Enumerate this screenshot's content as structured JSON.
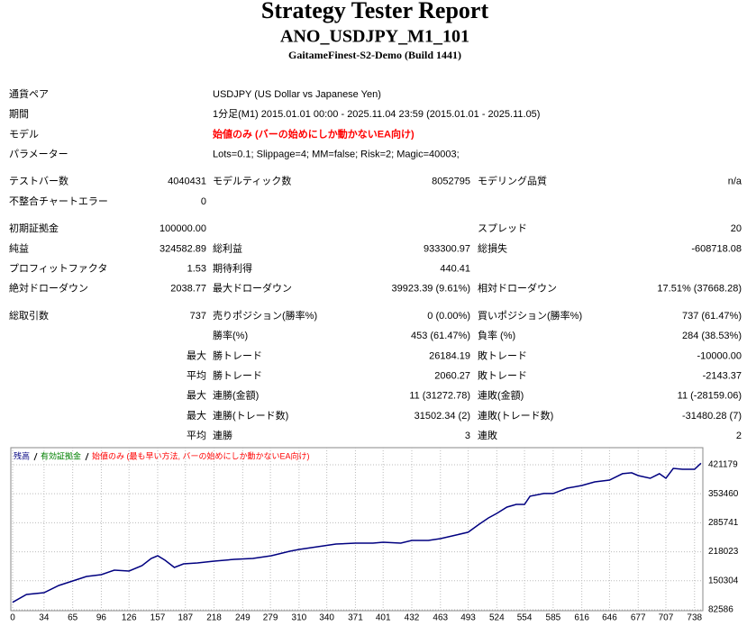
{
  "header": {
    "title": "Strategy Tester Report",
    "subtitle": "ANO_USDJPY_M1_101",
    "server": "GaitameFinest-S2-Demo (Build 1441)"
  },
  "sections": [
    [
      [
        "通貨ペア",
        "USDJPY (US Dollar vs Japanese Yen)"
      ],
      [
        "期間",
        "1分足(M1) 2015.01.01 00:00 - 2025.11.04 23:59 (2015.01.01 - 2025.11.05)"
      ],
      [
        "モデル",
        {
          "text": "始値のみ (バーの始めにしか動かないEA向け)",
          "color": "#ff0000",
          "bold": true
        }
      ],
      [
        "パラメーター",
        "Lots=0.1; Slippage=4; MM=false; Risk=2; Magic=40003;"
      ]
    ],
    [
      [
        "テストバー数",
        "4040431",
        "モデルティック数",
        "8052795",
        "モデリング品質",
        "n/a"
      ],
      [
        "不整合チャートエラー",
        "0",
        null,
        null,
        null,
        null
      ]
    ],
    [
      [
        "初期証拠金",
        "100000.00",
        null,
        null,
        "スプレッド",
        "20"
      ],
      [
        "純益",
        "324582.89",
        "総利益",
        "933300.97",
        "総損失",
        "-608718.08"
      ],
      [
        "プロフィットファクタ",
        "1.53",
        "期待利得",
        "440.41",
        null,
        null
      ],
      [
        "絶対ドローダウン",
        "2038.77",
        "最大ドローダウン",
        "39923.39 (9.61%)",
        "相対ドローダウン",
        "17.51% (37668.28)"
      ]
    ],
    [
      [
        "総取引数",
        "737",
        "売りポジション(勝率%)",
        "0 (0.00%)",
        "買いポジション(勝率%)",
        "737 (61.47%)"
      ],
      [
        null,
        null,
        "勝率(%)",
        "453 (61.47%)",
        "負率 (%)",
        "284 (38.53%)"
      ],
      [
        null,
        "最大",
        "勝トレード",
        "26184.19",
        "敗トレード",
        "-10000.00"
      ],
      [
        null,
        "平均",
        "勝トレード",
        "2060.27",
        "敗トレード",
        "-2143.37"
      ],
      [
        null,
        "最大",
        "連勝(金額)",
        "11 (31272.78)",
        "連敗(金額)",
        "11 (-28159.06)"
      ],
      [
        null,
        "最大",
        "連勝(トレード数)",
        "31502.34 (2)",
        "連敗(トレード数)",
        "-31480.28 (7)"
      ],
      [
        null,
        "平均",
        "連勝",
        "3",
        "連敗",
        "2"
      ]
    ]
  ],
  "chart_data": {
    "type": "line",
    "series": [
      {
        "name": "残高",
        "color": "#000080",
        "values": [
          100000,
          118300,
          122500,
          139400,
          149900,
          160400,
          164600,
          175100,
          173000,
          185600,
          202500,
          208800,
          198300,
          181400,
          189800,
          192000,
          196100,
          200400,
          202500,
          208800,
          219300,
          223500,
          229800,
          236100,
          238200,
          238200,
          240300,
          238200,
          244500,
          244500,
          248700,
          257100,
          263500,
          282400,
          297100,
          307600,
          322300,
          328600,
          328600,
          347600,
          353900,
          353900,
          366500,
          372800,
          381200,
          385400,
          400200,
          402300,
          395900,
          389600,
          400200,
          389600,
          412700,
          410600,
          410600,
          424583
        ]
      }
    ],
    "x": [
      0,
      15,
      34,
      50,
      65,
      80,
      96,
      110,
      126,
      140,
      150,
      157,
      165,
      175,
      185,
      200,
      218,
      240,
      260,
      280,
      300,
      310,
      330,
      350,
      371,
      390,
      401,
      420,
      432,
      450,
      463,
      480,
      493,
      505,
      515,
      524,
      535,
      545,
      554,
      560,
      575,
      585,
      600,
      616,
      630,
      646,
      660,
      670,
      677,
      690,
      700,
      707,
      715,
      725,
      738,
      745
    ],
    "annotations": [
      {
        "text": "有効証拠金",
        "color": "#008000"
      },
      {
        "text": "始値のみ (最も早い方法, バーの始めにしか動かないEA向け)",
        "color": "#ff0000"
      }
    ],
    "xlim": [
      0,
      747
    ],
    "ylim": [
      82586,
      461000
    ],
    "xticks": [
      0,
      34,
      65,
      96,
      126,
      157,
      187,
      218,
      249,
      279,
      310,
      340,
      371,
      401,
      432,
      463,
      493,
      524,
      554,
      585,
      616,
      646,
      677,
      707,
      738
    ],
    "yticks": [
      82586,
      150304,
      218023,
      285741,
      353460,
      421179
    ],
    "grid": true
  }
}
